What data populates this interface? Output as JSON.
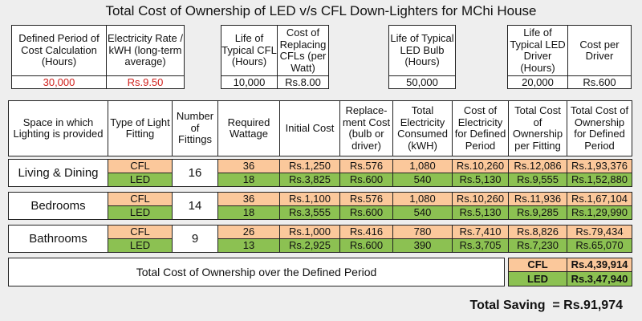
{
  "title": "Total Cost of Ownership of LED v/s CFL Down-Lighters for MChi House",
  "params": {
    "group1": [
      {
        "label": "Defined Period of Cost Calculation (Hours)",
        "value": "30,000"
      },
      {
        "label": "Electricity Rate / kWH (long-term average)",
        "value": "Rs.9.50"
      }
    ],
    "group2": [
      {
        "label": "Life of Typical CFL (Hours)",
        "value": "10,000"
      },
      {
        "label": "Cost of Replacing CFLs (per Watt)",
        "value": "Rs.8.00"
      }
    ],
    "group3": [
      {
        "label": "Life of Typical LED Bulb (Hours)",
        "value": "50,000"
      }
    ],
    "group4": [
      {
        "label": "Life of Typical LED Driver (Hours)",
        "value": "20,000"
      },
      {
        "label": "Cost per Driver",
        "value": "Rs.600"
      }
    ]
  },
  "headers": [
    "Space in which Lighting is provided",
    "Type of Light Fitting",
    "Number of Fittings",
    "Required Wattage",
    "Initial Cost",
    "Replace-ment Cost (bulb or driver)",
    "Total Electricity Consumed (kWH)",
    "Cost of Electricity for Defined Period",
    "Total Cost of Ownership per Fitting",
    "Total Cost of Ownership for Defined Period"
  ],
  "spaces": [
    {
      "name": "Living & Dining",
      "fittings": "16",
      "rows": [
        {
          "type": "CFL",
          "wattage": "36",
          "initial": "Rs.1,250",
          "replacement": "Rs.576",
          "kwh": "1,080",
          "elec_cost": "Rs.10,260",
          "tco_fitting": "Rs.12,086",
          "tco_period": "Rs.1,93,376"
        },
        {
          "type": "LED",
          "wattage": "18",
          "initial": "Rs.3,825",
          "replacement": "Rs.600",
          "kwh": "540",
          "elec_cost": "Rs.5,130",
          "tco_fitting": "Rs.9,555",
          "tco_period": "Rs.1,52,880"
        }
      ]
    },
    {
      "name": "Bedrooms",
      "fittings": "14",
      "rows": [
        {
          "type": "CFL",
          "wattage": "36",
          "initial": "Rs.1,100",
          "replacement": "Rs.576",
          "kwh": "1,080",
          "elec_cost": "Rs.10,260",
          "tco_fitting": "Rs.11,936",
          "tco_period": "Rs.1,67,104"
        },
        {
          "type": "LED",
          "wattage": "18",
          "initial": "Rs.3,555",
          "replacement": "Rs.600",
          "kwh": "540",
          "elec_cost": "Rs.5,130",
          "tco_fitting": "Rs.9,285",
          "tco_period": "Rs.1,29,990"
        }
      ]
    },
    {
      "name": "Bathrooms",
      "fittings": "9",
      "rows": [
        {
          "type": "CFL",
          "wattage": "26",
          "initial": "Rs.1,000",
          "replacement": "Rs.416",
          "kwh": "780",
          "elec_cost": "Rs.7,410",
          "tco_fitting": "Rs.8,826",
          "tco_period": "Rs.79,434"
        },
        {
          "type": "LED",
          "wattage": "13",
          "initial": "Rs.2,925",
          "replacement": "Rs.600",
          "kwh": "390",
          "elec_cost": "Rs.3,705",
          "tco_fitting": "Rs.7,230",
          "tco_period": "Rs.65,070"
        }
      ]
    }
  ],
  "total": {
    "label": "Total Cost of Ownership over the Defined Period",
    "cfl_label": "CFL",
    "cfl_value": "Rs.4,39,914",
    "led_label": "LED",
    "led_value": "Rs.3,47,940"
  },
  "saving": {
    "label": "Total Saving  =",
    "value": "Rs.91,974"
  },
  "colors": {
    "cfl": "#fbc89b",
    "led": "#8cc152",
    "highlight": "#d0201c"
  }
}
